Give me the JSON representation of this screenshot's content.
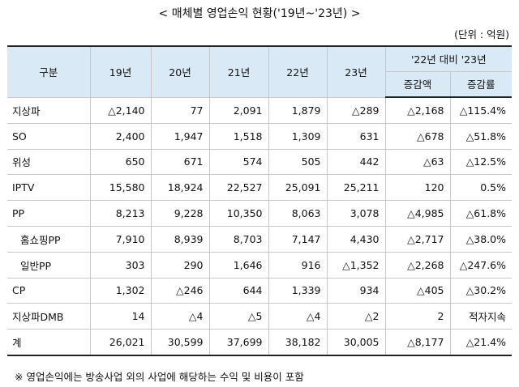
{
  "title": "< 매체별 영업손익 현황('19년~'23년) >",
  "unit": "(단위 : 억원)",
  "table": {
    "header": {
      "category": "구분",
      "years": [
        "19년",
        "20년",
        "21년",
        "22년",
        "23년"
      ],
      "group": "'22년 대비 '23년",
      "sub": [
        "증감액",
        "증감률"
      ]
    },
    "rows": [
      {
        "label": "지상파",
        "values": [
          "△2,140",
          "77",
          "2,091",
          "1,879",
          "△289",
          "△2,168",
          "△115.4%"
        ]
      },
      {
        "label": "SO",
        "values": [
          "2,400",
          "1,947",
          "1,518",
          "1,309",
          "631",
          "△678",
          "△51.8%"
        ]
      },
      {
        "label": "위성",
        "values": [
          "650",
          "671",
          "574",
          "505",
          "442",
          "△63",
          "△12.5%"
        ]
      },
      {
        "label": "IPTV",
        "values": [
          "15,580",
          "18,924",
          "22,527",
          "25,091",
          "25,211",
          "120",
          "0.5%"
        ]
      },
      {
        "label": "PP",
        "values": [
          "8,213",
          "9,228",
          "10,350",
          "8,063",
          "3,078",
          "△4,985",
          "△61.8%"
        ]
      },
      {
        "label": "홈쇼핑PP",
        "values": [
          "7,910",
          "8,939",
          "8,703",
          "7,147",
          "4,430",
          "△2,717",
          "△38.0%"
        ]
      },
      {
        "label": "일반PP",
        "values": [
          "303",
          "290",
          "1,646",
          "916",
          "△1,352",
          "△2,268",
          "△247.6%"
        ]
      },
      {
        "label": "CP",
        "values": [
          "1,302",
          "△246",
          "644",
          "1,339",
          "934",
          "△405",
          "△30.2%"
        ]
      },
      {
        "label": "지상파DMB",
        "values": [
          "14",
          "△4",
          "△5",
          "△4",
          "△2",
          "2",
          "적자지속"
        ]
      },
      {
        "label": "계",
        "values": [
          "26,021",
          "30,599",
          "37,699",
          "38,182",
          "30,005",
          "△8,177",
          "△21.4%"
        ]
      }
    ]
  },
  "note": "※ 영업손익에는 방송사업 외의 사업에 해당하는 수익 및 비용이 포함"
}
